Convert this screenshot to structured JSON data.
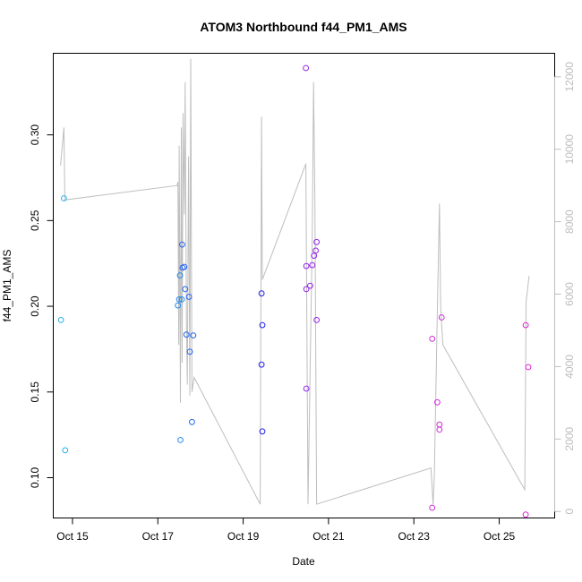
{
  "chart_data": {
    "type": "scatter",
    "title": "ATOM3 Northbound f44_PM1_AMS",
    "xlabel": "Date",
    "ylabel": "f44_PM1_AMS",
    "xlim": [
      14.55,
      26.3
    ],
    "ylim": [
      0.0765,
      0.3476
    ],
    "y2lim": [
      -180,
      12650
    ],
    "x_ticks": [
      {
        "value": 15,
        "label": "Oct 15"
      },
      {
        "value": 17,
        "label": "Oct 17"
      },
      {
        "value": 19,
        "label": "Oct 19"
      },
      {
        "value": 21,
        "label": "Oct 21"
      },
      {
        "value": 23,
        "label": "Oct 23"
      },
      {
        "value": 25,
        "label": "Oct 25"
      }
    ],
    "y_ticks": [
      {
        "value": 0.1,
        "label": "0.10"
      },
      {
        "value": 0.15,
        "label": "0.15"
      },
      {
        "value": 0.2,
        "label": "0.20"
      },
      {
        "value": 0.25,
        "label": "0.25"
      },
      {
        "value": 0.3,
        "label": "0.30"
      }
    ],
    "y2_ticks": [
      {
        "value": 0,
        "label": "0"
      },
      {
        "value": 2000,
        "label": "2000"
      },
      {
        "value": 4000,
        "label": "4000"
      },
      {
        "value": 6000,
        "label": "6000"
      },
      {
        "value": 8000,
        "label": "8000"
      },
      {
        "value": 10000,
        "label": "10000"
      },
      {
        "value": 12000,
        "label": "12000"
      }
    ],
    "colors": {
      "altitude_line": "#bebebe",
      "axis": "#000000",
      "right_axis": "#bdbdbd"
    },
    "points": [
      {
        "x": 14.73,
        "y": 0.192,
        "color": "#20b0f0"
      },
      {
        "x": 14.8,
        "y": 0.263,
        "color": "#20b0f0"
      },
      {
        "x": 14.83,
        "y": 0.116,
        "color": "#20b0f0"
      },
      {
        "x": 17.47,
        "y": 0.2005,
        "color": "#2288f0"
      },
      {
        "x": 17.5,
        "y": 0.204,
        "color": "#2288f0"
      },
      {
        "x": 17.52,
        "y": 0.218,
        "color": "#2288f0"
      },
      {
        "x": 17.53,
        "y": 0.122,
        "color": "#2288f0"
      },
      {
        "x": 17.56,
        "y": 0.204,
        "color": "#2288f0"
      },
      {
        "x": 17.57,
        "y": 0.236,
        "color": "#2266f0"
      },
      {
        "x": 17.58,
        "y": 0.2225,
        "color": "#2266f0"
      },
      {
        "x": 17.62,
        "y": 0.223,
        "color": "#2266f0"
      },
      {
        "x": 17.64,
        "y": 0.21,
        "color": "#2266f0"
      },
      {
        "x": 17.67,
        "y": 0.1835,
        "color": "#2266f0"
      },
      {
        "x": 17.73,
        "y": 0.2055,
        "color": "#2266f0"
      },
      {
        "x": 17.75,
        "y": 0.1735,
        "color": "#2266f0"
      },
      {
        "x": 17.8,
        "y": 0.1325,
        "color": "#2266f0"
      },
      {
        "x": 17.83,
        "y": 0.183,
        "color": "#2266f0"
      },
      {
        "x": 19.43,
        "y": 0.2075,
        "color": "#2020ee"
      },
      {
        "x": 19.43,
        "y": 0.166,
        "color": "#2020ee"
      },
      {
        "x": 19.45,
        "y": 0.189,
        "color": "#2020ee"
      },
      {
        "x": 19.45,
        "y": 0.127,
        "color": "#2020ee"
      },
      {
        "x": 20.47,
        "y": 0.339,
        "color": "#9020e8"
      },
      {
        "x": 20.48,
        "y": 0.2235,
        "color": "#9020e8"
      },
      {
        "x": 20.48,
        "y": 0.21,
        "color": "#9020e8"
      },
      {
        "x": 20.48,
        "y": 0.152,
        "color": "#9020e8"
      },
      {
        "x": 20.57,
        "y": 0.212,
        "color": "#9020e8"
      },
      {
        "x": 20.62,
        "y": 0.224,
        "color": "#9020e8"
      },
      {
        "x": 20.66,
        "y": 0.2295,
        "color": "#9020e8"
      },
      {
        "x": 20.7,
        "y": 0.2325,
        "color": "#9020e8"
      },
      {
        "x": 20.72,
        "y": 0.2375,
        "color": "#9020e8"
      },
      {
        "x": 20.72,
        "y": 0.192,
        "color": "#9020e8"
      },
      {
        "x": 23.43,
        "y": 0.181,
        "color": "#d02ad8"
      },
      {
        "x": 23.43,
        "y": 0.0825,
        "color": "#d02ad8"
      },
      {
        "x": 23.55,
        "y": 0.144,
        "color": "#d02ad8"
      },
      {
        "x": 23.6,
        "y": 0.131,
        "color": "#d02ad8"
      },
      {
        "x": 23.6,
        "y": 0.128,
        "color": "#d02ad8"
      },
      {
        "x": 23.65,
        "y": 0.1935,
        "color": "#d02ad8"
      },
      {
        "x": 25.62,
        "y": 0.189,
        "color": "#e020d4"
      },
      {
        "x": 25.62,
        "y": 0.0785,
        "color": "#e020d4"
      },
      {
        "x": 25.68,
        "y": 0.1645,
        "color": "#e020d4"
      }
    ],
    "altitude_series": {
      "name": "altitude",
      "axis": "right",
      "x": [
        14.72,
        14.8,
        14.82,
        17.45,
        17.47,
        17.49,
        17.5,
        17.53,
        17.55,
        17.57,
        17.59,
        17.62,
        17.64,
        17.67,
        17.69,
        17.72,
        17.75,
        17.77,
        17.8,
        17.85,
        19.4,
        19.43,
        19.45,
        20.47,
        20.52,
        20.62,
        20.65,
        20.68,
        20.72,
        23.4,
        23.45,
        23.48,
        23.55,
        23.6,
        23.63,
        23.68,
        25.55,
        25.6,
        25.63,
        25.7
      ],
      "y": [
        9550,
        10600,
        8600,
        9000,
        9100,
        4600,
        10100,
        3000,
        10600,
        4100,
        11000,
        8200,
        11850,
        5300,
        3500,
        9800,
        3200,
        12500,
        3300,
        3700,
        200,
        10900,
        6400,
        9600,
        200,
        7700,
        11850,
        8600,
        200,
        1200,
        200,
        1000,
        5500,
        8500,
        5600,
        4600,
        700,
        600,
        5800,
        6500
      ]
    }
  }
}
